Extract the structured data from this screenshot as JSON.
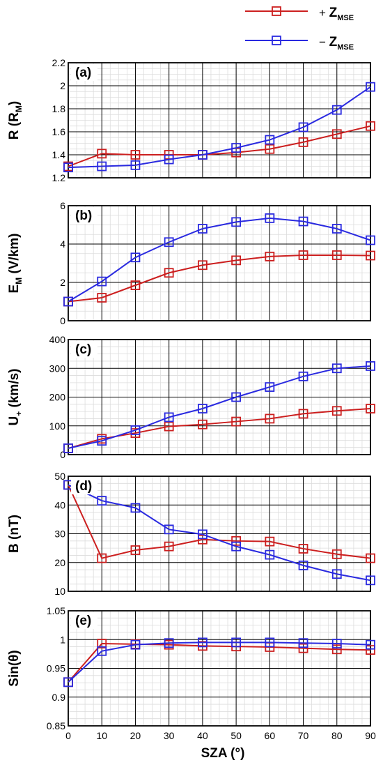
{
  "legend": [
    {
      "sign": "+",
      "label": "Z",
      "sub": "MSE",
      "color": "#cc1f1f"
    },
    {
      "sign": "−",
      "label": "Z",
      "sub": "MSE",
      "color": "#2a2ae0"
    }
  ],
  "xlabel": "SZA (°)",
  "chart_data": [
    {
      "type": "line",
      "panel_label": "(a)",
      "ylabel": {
        "main": "R (R",
        "sub": "M",
        "tail": ")"
      },
      "x": [
        0,
        10,
        20,
        30,
        40,
        50,
        60,
        70,
        80,
        90
      ],
      "xlim": [
        0,
        90
      ],
      "ylim": [
        1.2,
        2.2
      ],
      "yticks": [
        1.2,
        1.4,
        1.6,
        1.8,
        2,
        2.2
      ],
      "ytick_labels": [
        "1.2",
        "1.4",
        "1.6",
        "1.8",
        "2",
        "2.2"
      ],
      "series": [
        {
          "color": "#cc1f1f",
          "values": [
            1.3,
            1.41,
            1.4,
            1.4,
            1.4,
            1.42,
            1.45,
            1.51,
            1.58,
            1.65
          ]
        },
        {
          "color": "#2a2ae0",
          "values": [
            1.29,
            1.3,
            1.31,
            1.36,
            1.4,
            1.46,
            1.53,
            1.64,
            1.79,
            1.99
          ]
        }
      ]
    },
    {
      "type": "line",
      "panel_label": "(b)",
      "ylabel": {
        "main": "E",
        "sub": "M",
        "tail": " (V/km)"
      },
      "x": [
        0,
        10,
        20,
        30,
        40,
        50,
        60,
        70,
        80,
        90
      ],
      "xlim": [
        0,
        90
      ],
      "ylim": [
        0,
        6
      ],
      "yticks": [
        0,
        2,
        4,
        6
      ],
      "ytick_labels": [
        "0",
        "2",
        "4",
        "6"
      ],
      "series": [
        {
          "color": "#cc1f1f",
          "values": [
            1.0,
            1.2,
            1.85,
            2.5,
            2.9,
            3.15,
            3.35,
            3.42,
            3.42,
            3.4
          ]
        },
        {
          "color": "#2a2ae0",
          "values": [
            1.0,
            2.05,
            3.3,
            4.1,
            4.8,
            5.15,
            5.35,
            5.18,
            4.8,
            4.2
          ]
        }
      ]
    },
    {
      "type": "line",
      "panel_label": "(c)",
      "ylabel": {
        "main": "U",
        "sub": "+",
        "tail": " (km/s)"
      },
      "x": [
        0,
        10,
        20,
        30,
        40,
        50,
        60,
        70,
        80,
        90
      ],
      "xlim": [
        0,
        90
      ],
      "ylim": [
        0,
        400
      ],
      "yticks": [
        0,
        100,
        200,
        300,
        400
      ],
      "ytick_labels": [
        "0",
        "100",
        "200",
        "300",
        "400"
      ],
      "series": [
        {
          "color": "#cc1f1f",
          "values": [
            22,
            55,
            75,
            98,
            105,
            115,
            125,
            142,
            152,
            160
          ]
        },
        {
          "color": "#2a2ae0",
          "values": [
            22,
            48,
            85,
            130,
            160,
            200,
            235,
            272,
            300,
            308
          ]
        }
      ]
    },
    {
      "type": "line",
      "panel_label": "(d)",
      "ylabel": {
        "main": "B (nT)",
        "sub": "",
        "tail": ""
      },
      "x": [
        0,
        10,
        20,
        30,
        40,
        50,
        60,
        70,
        80,
        90
      ],
      "xlim": [
        0,
        90
      ],
      "ylim": [
        10,
        50
      ],
      "yticks": [
        10,
        20,
        30,
        40,
        50
      ],
      "ytick_labels": [
        "10",
        "20",
        "30",
        "40",
        "50"
      ],
      "series": [
        {
          "color": "#cc1f1f",
          "values": [
            47,
            21.5,
            24.3,
            25.6,
            28,
            27.5,
            27.3,
            24.8,
            22.9,
            21.5
          ]
        },
        {
          "color": "#2a2ae0",
          "values": [
            47,
            41.5,
            39,
            31.5,
            29.8,
            25.6,
            22.7,
            19,
            16,
            13.8
          ]
        }
      ]
    },
    {
      "type": "line",
      "panel_label": "(e)",
      "ylabel": {
        "main": "Sin(θ)",
        "sub": "",
        "tail": ""
      },
      "x": [
        0,
        10,
        20,
        30,
        40,
        50,
        60,
        70,
        80,
        90
      ],
      "xlim": [
        0,
        90
      ],
      "ylim": [
        0.85,
        1.05
      ],
      "yticks": [
        0.85,
        0.9,
        0.95,
        1,
        1.05
      ],
      "ytick_labels": [
        "0.85",
        "0.9",
        "0.95",
        "1",
        "1.05"
      ],
      "xticks": [
        0,
        10,
        20,
        30,
        40,
        50,
        60,
        70,
        80,
        90
      ],
      "xtick_labels": [
        "0",
        "10",
        "20",
        "30",
        "40",
        "50",
        "60",
        "70",
        "80",
        "90"
      ],
      "series": [
        {
          "color": "#cc1f1f",
          "values": [
            0.926,
            0.993,
            0.992,
            0.991,
            0.989,
            0.988,
            0.987,
            0.985,
            0.983,
            0.982
          ]
        },
        {
          "color": "#2a2ae0",
          "values": [
            0.926,
            0.98,
            0.991,
            0.994,
            0.995,
            0.995,
            0.995,
            0.994,
            0.993,
            0.991
          ]
        }
      ]
    }
  ]
}
